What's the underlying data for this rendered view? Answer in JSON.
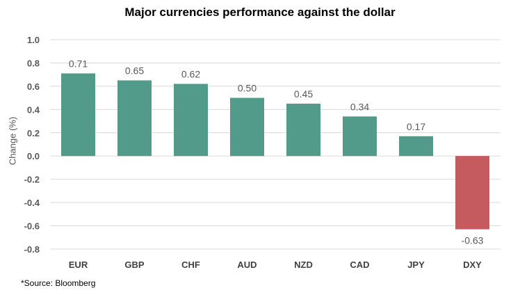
{
  "chart_data": {
    "type": "bar",
    "title": "Major currencies performance against the dollar",
    "ylabel": "Change (%)",
    "xlabel": "",
    "categories": [
      "EUR",
      "GBP",
      "CHF",
      "AUD",
      "NZD",
      "CAD",
      "JPY",
      "DXY"
    ],
    "values": [
      0.71,
      0.65,
      0.62,
      0.5,
      0.45,
      0.34,
      0.17,
      -0.63
    ],
    "value_labels": [
      "0.71",
      "0.65",
      "0.62",
      "0.50",
      "0.45",
      "0.34",
      "0.17",
      "-0.63"
    ],
    "ylim": [
      -0.8,
      1.0
    ],
    "yticks": [
      "1.0",
      "0.8",
      "0.6",
      "0.4",
      "0.2",
      "0.0",
      "-0.2",
      "-0.4",
      "-0.6",
      "-0.8"
    ],
    "ytick_values": [
      1.0,
      0.8,
      0.6,
      0.4,
      0.2,
      0.0,
      -0.2,
      -0.4,
      -0.6,
      -0.8
    ],
    "grid": true,
    "colors": {
      "positive": "#529b8a",
      "negative": "#c55a5f",
      "grid": "#d9d9d9"
    },
    "footnote": "*Source: Bloomberg"
  }
}
